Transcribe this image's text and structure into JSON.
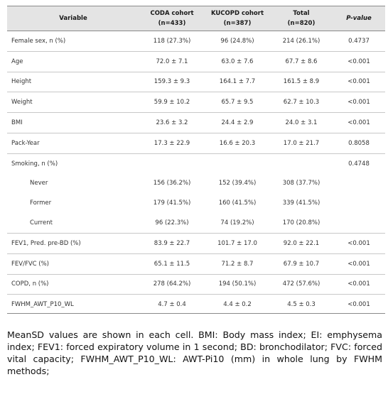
{
  "table": {
    "headers": {
      "variable": "Variable",
      "coda": "CODA cohort",
      "coda_n": "(n=433)",
      "kucopd": "KUCOPD cohort",
      "kucopd_n": "(n=387)",
      "total": "Total",
      "total_n": "(n=820)",
      "pvalue": "P-value"
    },
    "rows": [
      {
        "label": "Female sex, n (%)",
        "coda": "118 (27.3%)",
        "kucopd": "96 (24.8%)",
        "total": "214 (26.1%)",
        "p": "0.4737",
        "indent": false
      },
      {
        "label": "Age",
        "coda": "72.0 ± 7.1",
        "kucopd": "63.0 ± 7.6",
        "total": "67.7 ± 8.6",
        "p": "<0.001",
        "indent": false
      },
      {
        "label": "Height",
        "coda": "159.3 ± 9.3",
        "kucopd": "164.1 ± 7.7",
        "total": "161.5 ± 8.9",
        "p": "<0.001",
        "indent": false
      },
      {
        "label": "Weight",
        "coda": "59.9 ± 10.2",
        "kucopd": "65.7 ± 9.5",
        "total": "62.7 ± 10.3",
        "p": "<0.001",
        "indent": false
      },
      {
        "label": "BMI",
        "coda": "23.6 ± 3.2",
        "kucopd": "24.4 ± 2.9",
        "total": "24.0 ± 3.1",
        "p": "<0.001",
        "indent": false
      },
      {
        "label": "Pack-Year",
        "coda": "17.3 ± 22.9",
        "kucopd": "16.6 ± 20.3",
        "total": "17.0 ± 21.7",
        "p": "0.8058",
        "indent": false
      },
      {
        "label": "Smoking, n (%)",
        "coda": "",
        "kucopd": "",
        "total": "",
        "p": "0.4748",
        "indent": false
      },
      {
        "label": "Never",
        "coda": "156 (36.2%)",
        "kucopd": "152 (39.4%)",
        "total": "308 (37.7%)",
        "p": "",
        "indent": true
      },
      {
        "label": "Former",
        "coda": "179 (41.5%)",
        "kucopd": "160 (41.5%)",
        "total": "339 (41.5%)",
        "p": "",
        "indent": true
      },
      {
        "label": "Current",
        "coda": "96 (22.3%)",
        "kucopd": "74 (19.2%)",
        "total": "170 (20.8%)",
        "p": "",
        "indent": true
      },
      {
        "label": "FEV1, Pred. pre-BD (%)",
        "coda": "83.9 ± 22.7",
        "kucopd": "101.7 ± 17.0",
        "total": "92.0 ± 22.1",
        "p": "<0.001",
        "indent": false
      },
      {
        "label": "FEV/FVC (%)",
        "coda": "65.1 ± 11.5",
        "kucopd": "71.2 ± 8.7",
        "total": "67.9 ± 10.7",
        "p": "<0.001",
        "indent": false
      },
      {
        "label": "COPD, n (%)",
        "coda": "278 (64.2%)",
        "kucopd": "194 (50.1%)",
        "total": "472 (57.6%)",
        "p": "<0.001",
        "indent": false
      },
      {
        "label": "FWHM_AWT_P10_WL",
        "coda": "4.7 ± 0.4",
        "kucopd": "4.4 ± 0.2",
        "total": "4.5 ± 0.3",
        "p": "<0.001",
        "indent": false
      }
    ]
  },
  "footnote": "MeanSD values are shown in each cell. BMI: Body mass index; EI: emphysema index; FEV1: forced expiratory volume in 1 second; BD: bronchodilator; FVC: forced vital capacity; FWHM_AWT_P10_WL: AWT-Pi10 (mm) in whole lung by FWHM methods;"
}
